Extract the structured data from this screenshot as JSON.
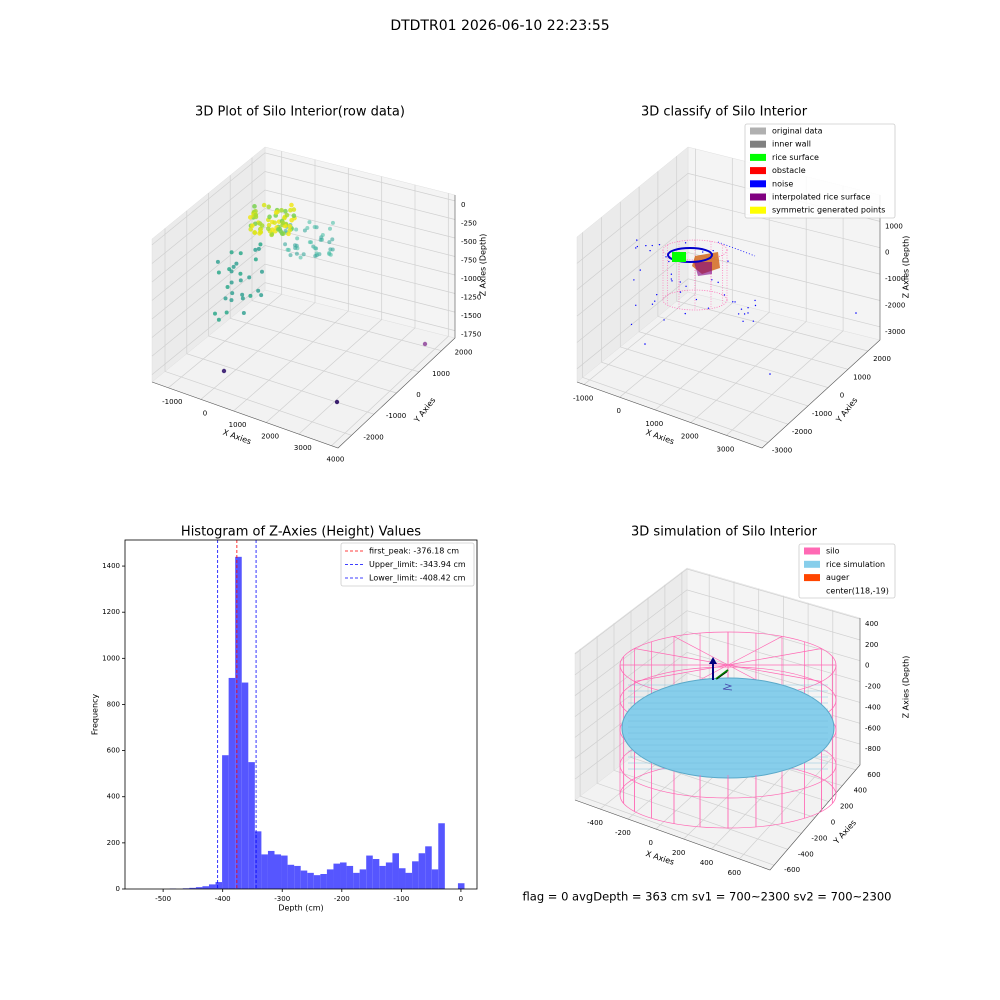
{
  "title": "DTDTR01 2026-06-10 22:23:55",
  "annotation": "flag = 0     avgDepth = 363 cm  sv1 = 700~2300  sv2 = 700~2300",
  "chart_data": [
    {
      "type": "scatter3d",
      "title": "3D Plot of Silo Interior(row data)",
      "xlabel": "X Axies",
      "ylabel": "Y Axies",
      "zlabel": "Z Axies (Depth)",
      "xlim": [
        -1500,
        4200
      ],
      "xticks": [
        -1000,
        0,
        1000,
        2000,
        3000,
        4000
      ],
      "ylim": [
        -2600,
        2600
      ],
      "yticks": [
        -2000,
        -1000,
        0,
        1000,
        2000
      ],
      "zlim": [
        -1850,
        80
      ],
      "zticks": [
        0,
        -250,
        -500,
        -750,
        -1000,
        -1250,
        -1500,
        -1750
      ]
    },
    {
      "type": "scatter3d",
      "title": "3D classify of Silo Interior",
      "xlabel": "X Axies",
      "ylabel": "Y Axies",
      "zlabel": "Z Axies (Depth)",
      "xlim": [
        -1200,
        4000
      ],
      "xticks": [
        -1000,
        0,
        1000,
        2000,
        3000
      ],
      "ylim": [
        -3300,
        2600
      ],
      "yticks": [
        -3000,
        -2000,
        -1000,
        0,
        1000,
        2000
      ],
      "zlim": [
        -3500,
        2000
      ],
      "zticks": [
        1000,
        0,
        -1000,
        -2000,
        -3000
      ],
      "legend": [
        {
          "name": "original data",
          "color": "#b0b0b0"
        },
        {
          "name": "inner wall",
          "color": "#808080"
        },
        {
          "name": "rice surface",
          "color": "#00ff00"
        },
        {
          "name": "obstacle",
          "color": "#ff0000"
        },
        {
          "name": "noise",
          "color": "#0000ff"
        },
        {
          "name": "interpolated rice surface",
          "color": "#800080"
        },
        {
          "name": "symmetric generated points",
          "color": "#ffff00"
        }
      ]
    },
    {
      "type": "histogram",
      "title": "Histogram of Z-Axies (Height) Values",
      "xlabel": "Depth (cm)",
      "ylabel": "Frequency",
      "color": "#4d4dff",
      "bins": [
        -544,
        -533,
        -522,
        -511,
        -500,
        -489,
        -478,
        -467,
        -456,
        -445,
        -434,
        -423,
        -412,
        -401,
        -390,
        -379,
        -368,
        -357,
        -346,
        -335,
        -324,
        -313,
        -302,
        -291,
        -280,
        -269,
        -258,
        -247,
        -236,
        -225,
        -214,
        -203,
        -192,
        -181,
        -170,
        -159,
        -148,
        -137,
        -126,
        -115,
        -104,
        -93,
        -82,
        -71,
        -60,
        -49,
        -38,
        -27,
        -16,
        -5,
        6
      ],
      "counts": [
        0,
        0,
        0,
        0,
        0,
        2,
        0,
        3,
        5,
        8,
        12,
        20,
        30,
        580,
        915,
        1440,
        895,
        550,
        250,
        150,
        165,
        150,
        145,
        105,
        100,
        80,
        70,
        60,
        65,
        85,
        110,
        115,
        100,
        70,
        85,
        145,
        130,
        100,
        115,
        155,
        90,
        70,
        120,
        155,
        185,
        85,
        285,
        0,
        0,
        25
      ],
      "xlim": [
        -564,
        27
      ],
      "xticks": [
        -500,
        -400,
        -300,
        -200,
        -100,
        0
      ],
      "ylim": [
        0,
        1513
      ],
      "yticks": [
        0,
        200,
        400,
        600,
        800,
        1000,
        1200,
        1400
      ],
      "vlines": [
        {
          "label": "first_peak: -376.18 cm",
          "value": -376.18,
          "color": "#ff0000"
        },
        {
          "label": "Upper_limit: -343.94 cm",
          "value": -343.94,
          "color": "#0000ff"
        },
        {
          "label": "Lower_limit: -408.42 cm",
          "value": -408.42,
          "color": "#0000ff"
        }
      ],
      "legend": "upper right"
    },
    {
      "type": "scatter3d",
      "title": "3D simulation of Silo Interior",
      "xlabel": "X Axies",
      "ylabel": "Y Axies",
      "zlabel": "Z Axies (Depth)",
      "xlim": [
        -580,
        820
      ],
      "xticks": [
        -400,
        -200,
        0,
        200,
        400,
        600
      ],
      "ylim": [
        -660,
        660
      ],
      "yticks": [
        -600,
        -400,
        -200,
        0,
        200,
        400,
        600
      ],
      "zlim": [
        -1000,
        410
      ],
      "zticks": [
        400,
        200,
        0,
        -200,
        -400,
        -600,
        -800
      ],
      "legend": [
        {
          "name": "silo",
          "color": "#ff69b4"
        },
        {
          "name": "rice simulation",
          "color": "#87ceeb"
        },
        {
          "name": "auger",
          "color": "#ff4500"
        },
        {
          "name": "center(118,-19)"
        }
      ]
    }
  ]
}
